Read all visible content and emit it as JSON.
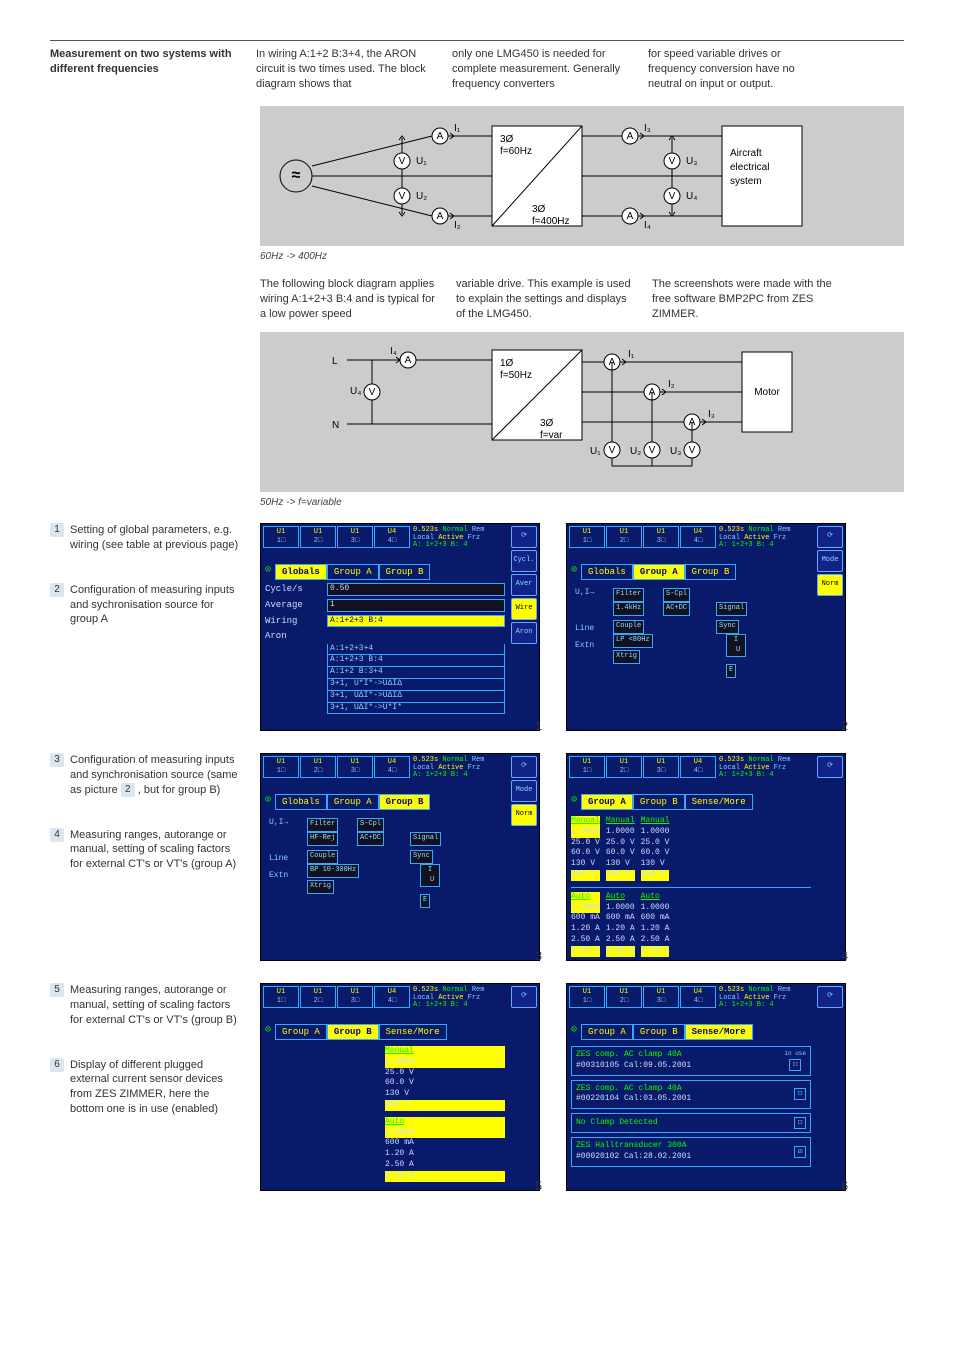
{
  "header": {
    "title": "Measurement on two systems with different frequencies",
    "col1": "In wiring A:1+2 B:3+4, the ARON circuit is two times used. The block diagram shows that",
    "col2": "only one LMG450 is needed for complete measurement. Generally frequency converters",
    "col3": "for speed variable drives or frequency conversion have no neutral on input or output."
  },
  "diagram1": {
    "source_label": "≈",
    "left": {
      "i1": "I₁",
      "i2": "I₂",
      "u1": "U₁",
      "u2": "U₂",
      "freq_top": "3Ø",
      "freq_bot": "f=60Hz"
    },
    "right": {
      "i3": "I₃",
      "i4": "I₄",
      "u3": "U₃",
      "u4": "U₄",
      "freq_top": "3Ø",
      "freq_bot": "f=400Hz"
    },
    "load": [
      "Aircraft",
      "electrical",
      "system"
    ],
    "caption": "60Hz -> 400Hz"
  },
  "mid": {
    "col1": "The following block diagram applies wiring A:1+2+3 B:4 and is typical for a low power speed",
    "col2": "variable drive. This example is used to explain the settings and displays of the LMG450.",
    "col3": "The screenshots were made with the free software BMP2PC from ZES ZIMMER."
  },
  "diagram2": {
    "L": "L",
    "N": "N",
    "i4": "I₄",
    "u4": "U₄",
    "freq1_top": "1Ø",
    "freq1_bot": "f=50Hz",
    "freq2_top": "3Ø",
    "freq2_bot": "f=var",
    "i1": "I₁",
    "i2": "I₂",
    "i3": "I₃",
    "u1": "U₁",
    "u2": "U₂",
    "u3": "U₃",
    "load": "Motor",
    "caption": "50Hz -> f=variable"
  },
  "notes": {
    "n1": "Setting of global parameters, e.g. wiring (see table at previous page)",
    "n2": "Configuration of measuring inputs and sychronisation source for group A",
    "n3a": "Configuration of measuring inputs and synchronisation source (same as picture ",
    "n3b": " , but for group B)",
    "n4": "Measuring ranges, autorange or manual, setting of scaling factors for external CT's or VT's (group A)",
    "n5": "Measuring ranges, autorange or manual, setting of scaling factors for external CT's or VT's (group B)",
    "n6": "Display of different plugged external current sensor devices from ZES ZIMMER, here the bottom one is in use (enabled)"
  },
  "tabs_u": [
    "1",
    "2",
    "3",
    "4"
  ],
  "top_status": {
    "l1a": "0.523s",
    "l1b": "Normal",
    "l1c": "Rem",
    "l2a": "Local",
    "l2b": "Active",
    "l2c": "Frz",
    "l3": "A: 1+2+3   B: 4"
  },
  "screen1": {
    "tabs": [
      "Globals",
      "Group A",
      "Group B"
    ],
    "rows": {
      "cycle_lbl": "Cycle/s",
      "cycle_val": "0.50",
      "avg_lbl": "Average",
      "avg_val": "1",
      "wir_lbl": "Wiring",
      "wir_val": "A:1+2+3   B:4",
      "aron_lbl": "Aron",
      "opts": [
        "A:1+2+3+4",
        "A:1+2+3   B:4",
        "A:1+2   B:3+4",
        "3+1, U*I*->UΔIΔ",
        "3+1, UΔI*->UΔIΔ",
        "3+1, UΔI*->U*I*"
      ]
    },
    "side": [
      "Cycl.",
      "Aver",
      "Wire",
      "Aron"
    ]
  },
  "screen2": {
    "tabs": [
      "Globals",
      "Group A",
      "Group B"
    ],
    "diag": {
      "lines": [
        "U,I→",
        "",
        "Line",
        "Extn"
      ],
      "filter": "Filter",
      "scpl": "S-Cpl",
      "f1": "1.4kHz",
      "f2": "AC+DC",
      "signal": "Signal",
      "sync": "Sync",
      "couple": "Couple",
      "lp": "LP <80Hz",
      "xtrig": "Xtrig"
    },
    "side": [
      "Mode",
      "Norm"
    ]
  },
  "screen3": {
    "tabs": [
      "Globals",
      "Group A",
      "Group B"
    ],
    "diag": {
      "filter": "Filter",
      "scpl": "S-Cpl",
      "f1": "HF-Rej",
      "f2": "AC+DC",
      "signal": "Signal",
      "sync": "Sync",
      "couple": "Couple",
      "bp": "BP  10-300Hz",
      "xtrig": "Xtrig",
      "lines": [
        "U,I→",
        "",
        "Line",
        "Extn"
      ]
    },
    "side": [
      "Mode",
      "Norm"
    ]
  },
  "screen4": {
    "tabs": [
      "Group A",
      "Group B",
      "Sense/More"
    ],
    "cols": [
      {
        "hdr": "Manual",
        "scale": "1.0000",
        "v": [
          "25.0 V",
          "60.0 V",
          "130 V",
          "250 V"
        ]
      },
      {
        "hdr": "Manual",
        "scale": "1.0000",
        "v": [
          "25.0 V",
          "60.0 V",
          "130 V",
          "250 V"
        ]
      },
      {
        "hdr": "Manual",
        "scale": "1.0000",
        "v": [
          "25.0 V",
          "60.0 V",
          "130 V",
          "250 V"
        ]
      }
    ],
    "cols2": [
      {
        "hdr": "Auto",
        "scale": "1.0000",
        "v": [
          "600 mA",
          "1.20 A",
          "2.50 A",
          "5.00 A"
        ]
      },
      {
        "hdr": "Auto",
        "scale": "1.0000",
        "v": [
          "600 mA",
          "1.20 A",
          "2.50 A",
          "5.00 A"
        ]
      },
      {
        "hdr": "Auto",
        "scale": "1.0000",
        "v": [
          "600 mA",
          "1.20 A",
          "2.50 A",
          "5.00 A"
        ]
      }
    ]
  },
  "screen5": {
    "tabs": [
      "Group A",
      "Group B",
      "Sense/More"
    ],
    "col": {
      "hdr": "Manual",
      "scale": "1.0000",
      "v": [
        "25.0 V",
        "60.0 V",
        "130 V",
        "250 V"
      ]
    },
    "col2": {
      "hdr": "Auto",
      "scale": "1.0000",
      "v": [
        "600 mA",
        "1.20 A",
        "2.50 A",
        "5.00 A"
      ]
    }
  },
  "screen6": {
    "tabs": [
      "Group A",
      "Group B",
      "Sense/More"
    ],
    "inuse": "in use",
    "sensors": [
      {
        "l1": "ZES comp. AC clamp 40A",
        "l2": "#00310105   Cal:09.05.2001",
        "mark": "☐"
      },
      {
        "l1": "ZES comp. AC clamp 40A",
        "l2": "#00220104   Cal:03.05.2001",
        "mark": "☐"
      },
      {
        "l1": "No Clamp Detected",
        "l2": "",
        "mark": "☐"
      },
      {
        "l1": "ZES Halltransducer 300A",
        "l2": "#00020102   Cal:28.02.2001",
        "mark": "☑"
      }
    ]
  },
  "colors": {
    "screen_bg": "#0a1a6a",
    "yellow": "#ffcc00",
    "cyan": "#88ccff",
    "green": "#00ff00",
    "diagram_bg": "#cccccc",
    "chip_bg": "#dde6ee"
  }
}
